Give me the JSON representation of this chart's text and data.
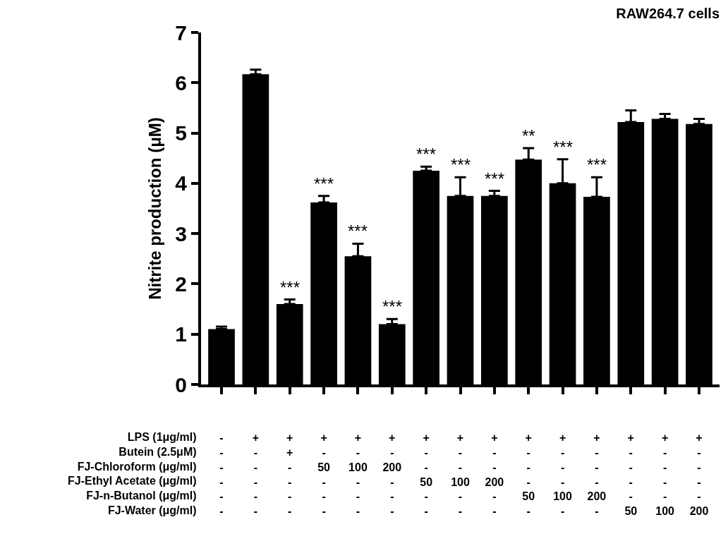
{
  "chart_data": {
    "type": "bar",
    "title": "RAW264.7 cells",
    "ylabel": "Nitrite production (μM)",
    "categories": [
      "-\n-\n-\n-\n-\n-",
      "+\n-\n-\n-\n-\n-",
      "+\n+\n-\n-\n-\n-",
      "+\n-\n50\n-\n-\n-",
      "+\n-\n100\n-\n-\n-",
      "+\n-\n200\n-\n-\n-",
      "+\n-\n-\n50\n-\n-",
      "+\n-\n-\n100\n-\n-",
      "+\n-\n-\n200\n-\n-",
      "+\n-\n-\n-\n50\n-",
      "+\n-\n-\n-\n100\n-",
      "+\n-\n-\n-\n200\n-",
      "+\n-\n-\n-\n-\n50",
      "+\n-\n-\n-\n-\n100",
      "+\n-\n-\n-\n-\n200"
    ],
    "values": [
      1.1,
      6.17,
      1.6,
      3.62,
      2.55,
      1.2,
      4.25,
      3.75,
      3.75,
      4.47,
      4.0,
      3.73,
      5.22,
      5.28,
      5.18
    ],
    "errors": [
      [
        1.1,
        1.15
      ],
      [
        6.17,
        6.26
      ],
      [
        1.6,
        1.69
      ],
      [
        3.62,
        3.75
      ],
      [
        2.55,
        2.8
      ],
      [
        1.2,
        1.3
      ],
      [
        4.25,
        4.33
      ],
      [
        3.75,
        4.12
      ],
      [
        3.75,
        3.85
      ],
      [
        4.47,
        4.7
      ],
      [
        4.0,
        4.48
      ],
      [
        3.73,
        4.12
      ],
      [
        5.22,
        5.45
      ],
      [
        5.28,
        5.38
      ],
      [
        5.18,
        5.28
      ]
    ],
    "value_labels": [
      null,
      null,
      "***",
      "***",
      "***",
      "***",
      "***",
      "***",
      "***",
      "**",
      "***",
      "***",
      null,
      null,
      null
    ],
    "color": "#000000",
    "ylim": [
      0,
      7
    ],
    "yticks": [
      0,
      1,
      2,
      3,
      4,
      5,
      6,
      7
    ],
    "annotations": [
      "LPS (1μg/ml)",
      "Butein (2.5μM)",
      "FJ-Chloroform (μg/ml)",
      "FJ-Ethyl Acetate (μg/ml)",
      "FJ-n-Butanol (μg/ml)",
      "FJ-Water (μg/ml)"
    ]
  }
}
